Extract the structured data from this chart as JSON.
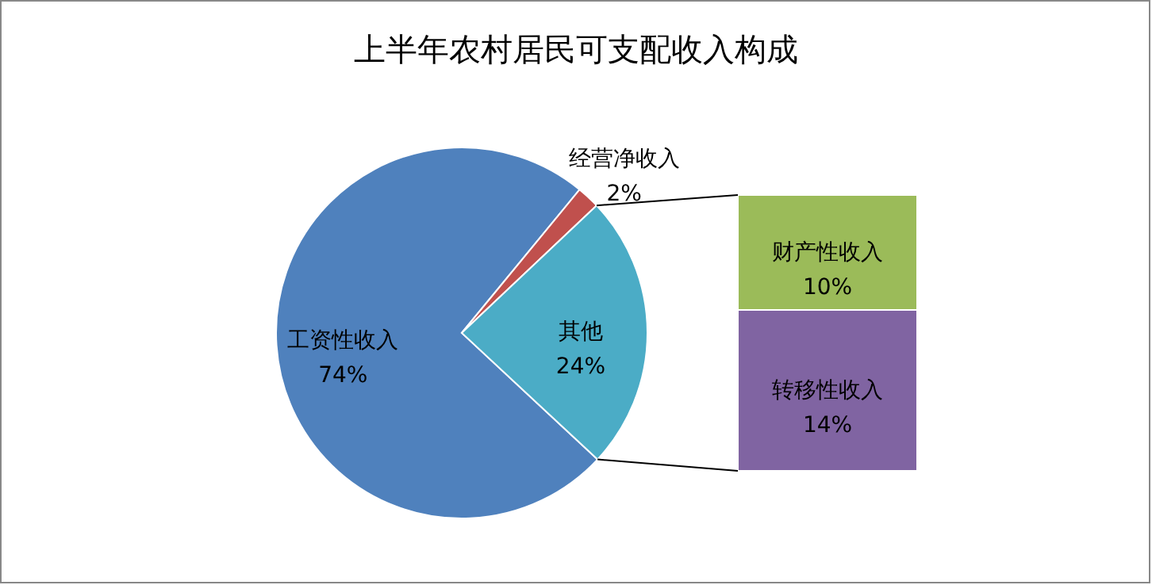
{
  "chart_data": [
    {
      "type": "pie",
      "title": "上半年农村居民可支配收入构成",
      "categories": [
        "工资性收入",
        "经营净收入",
        "其他"
      ],
      "values": [
        74,
        2,
        24
      ],
      "colors": [
        "#4f81bd",
        "#c0504d",
        "#4bacc6"
      ],
      "value_labels": [
        "74%",
        "2%",
        "24%"
      ]
    },
    {
      "type": "bar",
      "stacked": true,
      "categories": [
        null
      ],
      "series": [
        {
          "name": "转移性收入",
          "color": "#8064a2",
          "values": [
            14
          ],
          "value_labels": [
            "14%"
          ]
        },
        {
          "name": "财产性收入",
          "color": "#9bbb59",
          "values": [
            10
          ],
          "value_labels": [
            "10%"
          ]
        }
      ]
    }
  ]
}
